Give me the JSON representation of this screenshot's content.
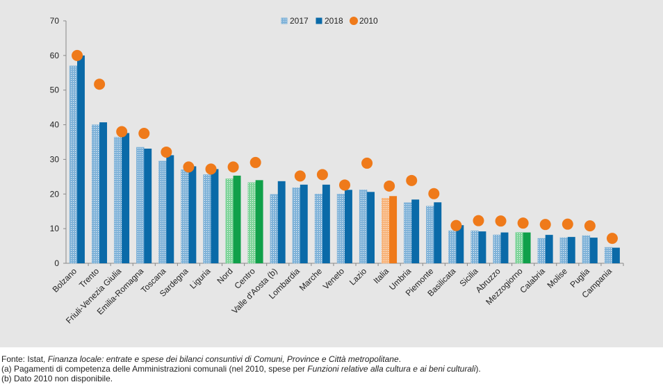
{
  "chart_data": {
    "type": "bar",
    "categories": [
      "Bolzano",
      "Trento",
      "Friuli-Venezia Giulia",
      "Emilia-Romagna",
      "Toscana",
      "Sardegna",
      "Liguria",
      "Nord",
      "Centro",
      "Valle d'Aosta (b)",
      "Lombardia",
      "Marche",
      "Veneto",
      "Lazio",
      "Italia",
      "Umbria",
      "Piemonte",
      "Basilicata",
      "Sicilia",
      "Abruzzo",
      "Mezzogiorno",
      "Calabria",
      "Molise",
      "Puglia",
      "Campania"
    ],
    "series": [
      {
        "name": "2017",
        "color": "#7fb2d8",
        "hatched": true,
        "colors": [
          "#7fb2d8",
          "#7fb2d8",
          "#7fb2d8",
          "#7fb2d8",
          "#7fb2d8",
          "#7fb2d8",
          "#7fb2d8",
          "#7fd49a",
          "#7fd49a",
          "#7fb2d8",
          "#7fb2d8",
          "#7fb2d8",
          "#7fb2d8",
          "#7fb2d8",
          "#f7b37a",
          "#7fb2d8",
          "#7fb2d8",
          "#7fb2d8",
          "#7fb2d8",
          "#7fb2d8",
          "#7fd49a",
          "#7fb2d8",
          "#7fb2d8",
          "#7fb2d8",
          "#7fb2d8"
        ],
        "values": [
          57,
          40,
          36.4,
          33.5,
          29.5,
          27,
          25.6,
          24.4,
          23.3,
          19.9,
          21.8,
          20,
          20,
          21.2,
          18.8,
          17.5,
          16.5,
          9.4,
          9.4,
          8.2,
          8.9,
          7.2,
          7.4,
          8,
          4.6
        ]
      },
      {
        "name": "2018",
        "color": "#0a6aa8",
        "colors": [
          "#0a6aa8",
          "#0a6aa8",
          "#0a6aa8",
          "#0a6aa8",
          "#0a6aa8",
          "#0a6aa8",
          "#0a6aa8",
          "#10a04a",
          "#10a04a",
          "#0a6aa8",
          "#0a6aa8",
          "#0a6aa8",
          "#0a6aa8",
          "#0a6aa8",
          "#ef7a1a",
          "#0a6aa8",
          "#0a6aa8",
          "#0a6aa8",
          "#0a6aa8",
          "#0a6aa8",
          "#10a04a",
          "#0a6aa8",
          "#0a6aa8",
          "#0a6aa8",
          "#0a6aa8"
        ],
        "values": [
          60,
          40.7,
          37.6,
          33.1,
          31.2,
          28,
          27.2,
          25.3,
          24,
          23.7,
          22.7,
          22.7,
          21.2,
          20.6,
          19.4,
          18.4,
          17.6,
          11,
          9.2,
          8.9,
          8.9,
          8.2,
          7.6,
          7.4,
          4.5
        ]
      },
      {
        "name": "2010",
        "color": "#ef7a1a",
        "marker": "dot",
        "values": [
          60,
          51.7,
          38,
          37.5,
          32.1,
          27.8,
          27.2,
          27.8,
          29.1,
          null,
          25.2,
          25.6,
          22.6,
          28.9,
          22.3,
          23.9,
          20.1,
          10.9,
          12.3,
          12.2,
          11.6,
          11.2,
          11.3,
          10.8,
          7.2
        ]
      }
    ],
    "ylim": [
      0,
      70
    ],
    "yticks": [
      0,
      10,
      20,
      30,
      40,
      50,
      60,
      70
    ],
    "legend": "top"
  },
  "notes": [
    [
      {
        "text": "Fonte: Istat, "
      },
      {
        "text": "Finanza locale: entrate e spese dei bilanci consuntivi di Comuni, Province e Città metropolitane",
        "italic": true
      },
      {
        "text": "."
      }
    ],
    [
      {
        "text": "(a) Pagamenti di competenza delle Amministrazioni comunali (nel 2010, spese per "
      },
      {
        "text": "Funzioni relative alla cultura e ai beni culturali",
        "italic": true
      },
      {
        "text": ")."
      }
    ],
    [
      {
        "text": "(b) Dato 2010 non disponibile."
      }
    ]
  ]
}
